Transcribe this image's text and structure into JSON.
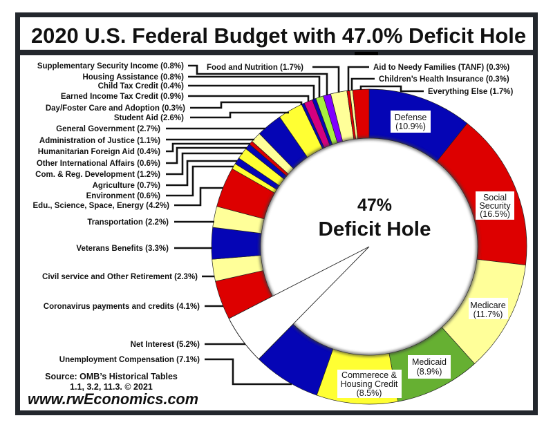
{
  "title": {
    "text": "2020 U.S. Federal Budget with 47.0% Deficit Hole"
  },
  "chart_data": {
    "type": "pie",
    "subtype": "donut",
    "title": "2020 U.S. Federal Budget with 47.0% Deficit Hole",
    "units": "percent of federal outlays",
    "deficit_percent": 47.0,
    "center_label": {
      "line1": "47%",
      "line2": "Deficit Hole"
    },
    "start": "top",
    "direction": "clockwise",
    "slices": [
      {
        "key": "defense",
        "name": "Defense",
        "value": 10.9,
        "color": "#0505b5",
        "box_lines": [
          "Defense",
          "(10.9%)"
        ]
      },
      {
        "key": "social-security",
        "name": "Social Security",
        "value": 16.5,
        "color": "#dd0000",
        "box_lines": [
          "Social",
          "Security",
          "(16.5%)"
        ]
      },
      {
        "key": "medicare",
        "name": "Medicare",
        "value": 11.7,
        "color": "#ffff99",
        "box_lines": [
          "Medicare",
          "(11.7%)"
        ]
      },
      {
        "key": "medicaid",
        "name": "Medicaid",
        "value": 8.9,
        "color": "#66b032",
        "box_lines": [
          "Medicaid",
          "(8.9%)"
        ]
      },
      {
        "key": "commerce-housing-credit",
        "name": "Commerece & Housing Credit",
        "value": 8.5,
        "color": "#ffff33",
        "box_lines": [
          "Commerece &",
          "Housing Credit",
          "(8.5%)"
        ]
      },
      {
        "key": "unemployment-compensation",
        "name": "Unemployment Compensation",
        "value": 7.1,
        "color": "#0505b5",
        "label": "Unemployment Compensation (7.1%)"
      },
      {
        "key": "net-interest",
        "name": "Net Interest",
        "value": 5.2,
        "color": "#ffffff",
        "label": "Net Interest (5.2%)"
      },
      {
        "key": "coronavirus-payments",
        "name": "Coronavirus payments and credits",
        "value": 4.1,
        "color": "#dd0000",
        "label": "Coronavirus payments and credits (4.1%)"
      },
      {
        "key": "civil-service-retirement",
        "name": "Civil service and Other Retirement",
        "value": 2.3,
        "color": "#ffff99",
        "label": "Civil service and Other Retirement (2.3%)"
      },
      {
        "key": "veterans-benefits",
        "name": "Veterans Benefits",
        "value": 3.3,
        "color": "#0505b5",
        "label": "Veterans Benefits (3.3%)"
      },
      {
        "key": "transportation",
        "name": "Transportation",
        "value": 2.2,
        "color": "#ffff99",
        "label": "Transportation (2.2%)"
      },
      {
        "key": "edu-science-space-energy",
        "name": "Edu., Science, Space, Energy",
        "value": 4.2,
        "color": "#dd0000",
        "label": "Edu., Science, Space, Energy (4.2%)"
      },
      {
        "key": "environment",
        "name": "Environment",
        "value": 0.6,
        "color": "#ffff33",
        "label": "Environment (0.6%)"
      },
      {
        "key": "agriculture",
        "name": "Agriculture",
        "value": 0.7,
        "color": "#0505b5",
        "label": "Agriculture (0.7%)"
      },
      {
        "key": "com-reg-development",
        "name": "Com. & Reg. Development",
        "value": 1.2,
        "color": "#ffff33",
        "label": "Com. & Reg. Development (1.2%)"
      },
      {
        "key": "other-international-affairs",
        "name": "Other International Affairs",
        "value": 0.6,
        "color": "#0505b5",
        "label": "Other International Affairs (0.6%)"
      },
      {
        "key": "humanitarian-foreign-aid",
        "name": "Humanitarian Foreign Aid",
        "value": 0.4,
        "color": "#dd0000",
        "label": "Humanitarian Foreign Aid (0.4%)"
      },
      {
        "key": "administration-of-justice",
        "name": "Administration of Justice",
        "value": 1.1,
        "color": "#ffff99",
        "label": "Administration of Justice (1.1%)"
      },
      {
        "key": "general-government",
        "name": "General Government",
        "value": 2.7,
        "color": "#0505b5",
        "label": "General Government (2.7%)"
      },
      {
        "key": "student-aid",
        "name": "Student Aid",
        "value": 2.6,
        "color": "#ffff33",
        "label": "Student Aid (2.6%)"
      },
      {
        "key": "day-foster-care-adoption",
        "name": "Day/Foster Care and Adoption",
        "value": 0.3,
        "color": "#0505b5",
        "label": "Day/Foster Care and Adoption (0.3%)"
      },
      {
        "key": "earned-income-tax-credit",
        "name": "Earned Income Tax Credit",
        "value": 0.9,
        "color": "#d4007f",
        "label": "Earned Income Tax Credit (0.9%)"
      },
      {
        "key": "child-tax-credit",
        "name": "Child Tax Credit",
        "value": 0.4,
        "color": "#0505b5",
        "label": "Child Tax Credit (0.4%)"
      },
      {
        "key": "housing-assistance",
        "name": "Housing Assistance",
        "value": 0.8,
        "color": "#a8f040",
        "label": "Housing Assistance (0.8%)"
      },
      {
        "key": "supplementary-security-income",
        "name": "Supplementary Security Income",
        "value": 0.8,
        "color": "#8000ff",
        "label": "Supplementary Security Income (0.8%)"
      },
      {
        "key": "food-and-nutrition",
        "name": "Food and Nutrition",
        "value": 1.7,
        "color": "#ffff99",
        "label": "Food and Nutrition (1.7%)"
      },
      {
        "key": "aid-to-needy-families",
        "name": "Aid to Needy Families (TANF)",
        "value": 0.3,
        "color": "#dd0000",
        "label": "Aid to Needy Families (TANF) (0.3%)"
      },
      {
        "key": "childrens-health-insurance",
        "name": "Children’s Health Insurance",
        "value": 0.3,
        "color": "#ffff99",
        "label": "Children’s Health Insurance (0.3%)"
      },
      {
        "key": "everything-else",
        "name": "Everything Else",
        "value": 1.7,
        "color": "#dd0000",
        "label": "Everything Else (1.7%)"
      }
    ]
  },
  "source": {
    "line1": "Source: OMB’s Historical Tables",
    "line2": "1.1, 3.2, 11.3. © 2021",
    "website": "www.rwEconomics.com"
  },
  "colors": {
    "frame": "#23272d",
    "background": "#ffffff"
  }
}
